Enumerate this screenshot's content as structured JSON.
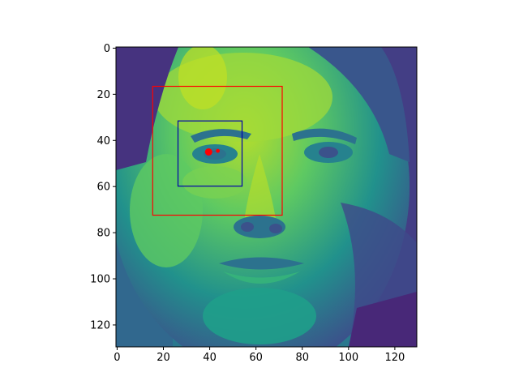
{
  "figure": {
    "image": {
      "description_colormap": "viridis",
      "extent": {
        "x": [
          -0.5,
          129.5
        ],
        "y": [
          129.5,
          -0.5
        ]
      }
    },
    "axes": {
      "x_ticks": [
        0,
        20,
        40,
        60,
        80,
        100,
        120
      ],
      "y_ticks": [
        0,
        20,
        40,
        60,
        80,
        100,
        120
      ],
      "xlim": [
        -0.5,
        129.5
      ],
      "ylim": [
        129.5,
        -0.5
      ],
      "y_inverted": true
    },
    "overlays": {
      "outer_box": {
        "x0": 15,
        "y0": 17,
        "x1": 71.5,
        "y1": 73,
        "color": "#ff0000"
      },
      "inner_box": {
        "x0": 26,
        "y0": 32,
        "x1": 54,
        "y1": 60.5,
        "color": "#0000aa"
      },
      "points": [
        {
          "x": 39.5,
          "y": 45,
          "color": "#ff0000",
          "size": "large"
        },
        {
          "x": 43.5,
          "y": 44.5,
          "color": "#ff0000",
          "size": "small"
        }
      ]
    }
  }
}
